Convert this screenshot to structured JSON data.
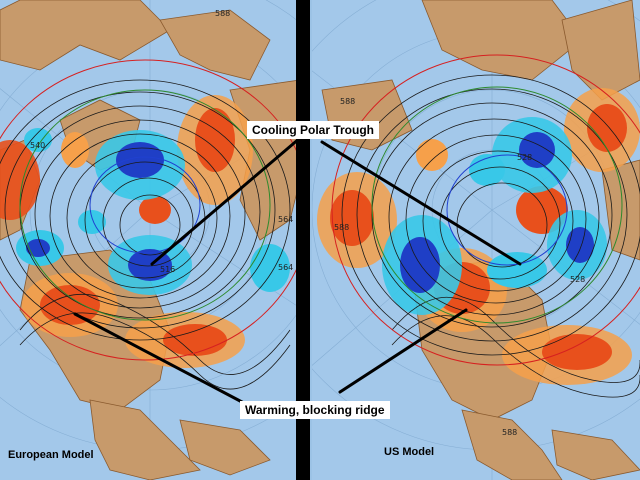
{
  "callouts": {
    "cooling": "Cooling Polar Trough",
    "warming": "Warming, blocking ridge"
  },
  "panels": {
    "left": {
      "label": "European Model"
    },
    "right": {
      "label": "US Model"
    }
  },
  "contour_labels": {
    "left": [
      "588",
      "540",
      "564",
      "564",
      "516"
    ],
    "right": [
      "588",
      "588",
      "528",
      "528",
      "588"
    ]
  },
  "colors": {
    "ocean": "#a3c8ea",
    "land": "#c79a6b",
    "warm_anomaly": "#e8501c",
    "warm_light": "#f6a04a",
    "cold_anomaly": "#1f3fc6",
    "cold_light": "#38c8e8",
    "divider": "#000000"
  }
}
